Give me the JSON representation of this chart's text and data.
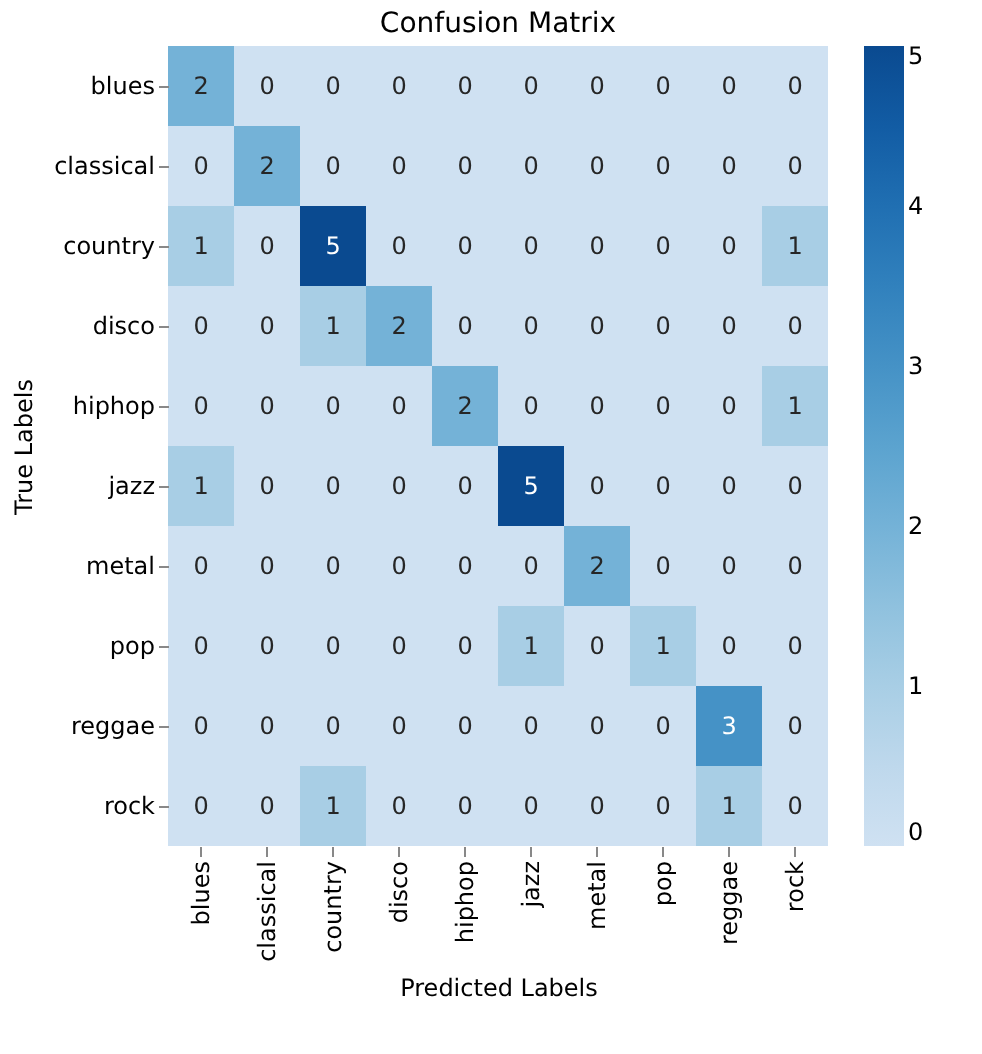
{
  "chart_data": {
    "type": "heatmap",
    "title": "Confusion Matrix",
    "xlabel": "Predicted Labels",
    "ylabel": "True Labels",
    "categories": [
      "blues",
      "classical",
      "country",
      "disco",
      "hiphop",
      "jazz",
      "metal",
      "pop",
      "reggae",
      "rock"
    ],
    "y_categories": [
      "blues",
      "classical",
      "country",
      "disco",
      "hiphop",
      "jazz",
      "metal",
      "pop",
      "reggae",
      "rock"
    ],
    "cells": [
      [
        2,
        0,
        0,
        0,
        0,
        0,
        0,
        0,
        0,
        0
      ],
      [
        0,
        2,
        0,
        0,
        0,
        0,
        0,
        0,
        0,
        0
      ],
      [
        1,
        0,
        5,
        0,
        0,
        0,
        0,
        0,
        0,
        1
      ],
      [
        0,
        0,
        1,
        2,
        0,
        0,
        0,
        0,
        0,
        0
      ],
      [
        0,
        0,
        0,
        0,
        2,
        0,
        0,
        0,
        0,
        1
      ],
      [
        1,
        0,
        0,
        0,
        0,
        5,
        0,
        0,
        0,
        0
      ],
      [
        0,
        0,
        0,
        0,
        0,
        0,
        2,
        0,
        0,
        0
      ],
      [
        0,
        0,
        0,
        0,
        0,
        1,
        0,
        1,
        0,
        0
      ],
      [
        0,
        0,
        0,
        0,
        0,
        0,
        0,
        0,
        3,
        0
      ],
      [
        0,
        0,
        1,
        0,
        0,
        0,
        0,
        0,
        1,
        0
      ]
    ],
    "clim": [
      0,
      5
    ],
    "cticks": [
      0,
      1,
      2,
      3,
      4,
      5
    ],
    "data_labels": true
  }
}
